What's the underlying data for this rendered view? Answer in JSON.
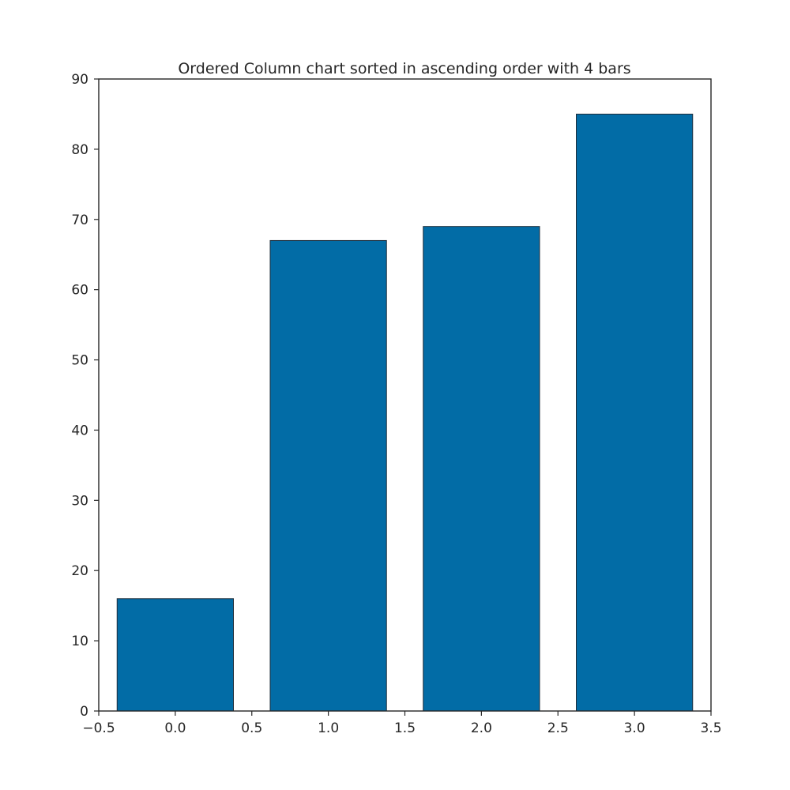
{
  "chart_data": {
    "type": "bar",
    "title": "Ordered Column chart sorted in ascending order with 4 bars",
    "xlabel": "",
    "ylabel": "",
    "x": [
      0,
      1,
      2,
      3
    ],
    "values": [
      16,
      67,
      69,
      85
    ],
    "bar_width": 0.76,
    "xlim": [
      -0.5,
      3.5
    ],
    "ylim": [
      0,
      90
    ],
    "x_ticks": [
      -0.5,
      0.0,
      0.5,
      1.0,
      1.5,
      2.0,
      2.5,
      3.0,
      3.5
    ],
    "x_tick_labels": [
      "−0.5",
      "0.0",
      "0.5",
      "1.0",
      "1.5",
      "2.0",
      "2.5",
      "3.0",
      "3.5"
    ],
    "y_ticks": [
      0,
      10,
      20,
      30,
      40,
      50,
      60,
      70,
      80,
      90
    ],
    "y_tick_labels": [
      "0",
      "10",
      "20",
      "30",
      "40",
      "50",
      "60",
      "70",
      "80",
      "90"
    ],
    "grid": false,
    "legend": "none",
    "bar_color": "#026ca6",
    "edge_color": "#1f2d3a"
  }
}
